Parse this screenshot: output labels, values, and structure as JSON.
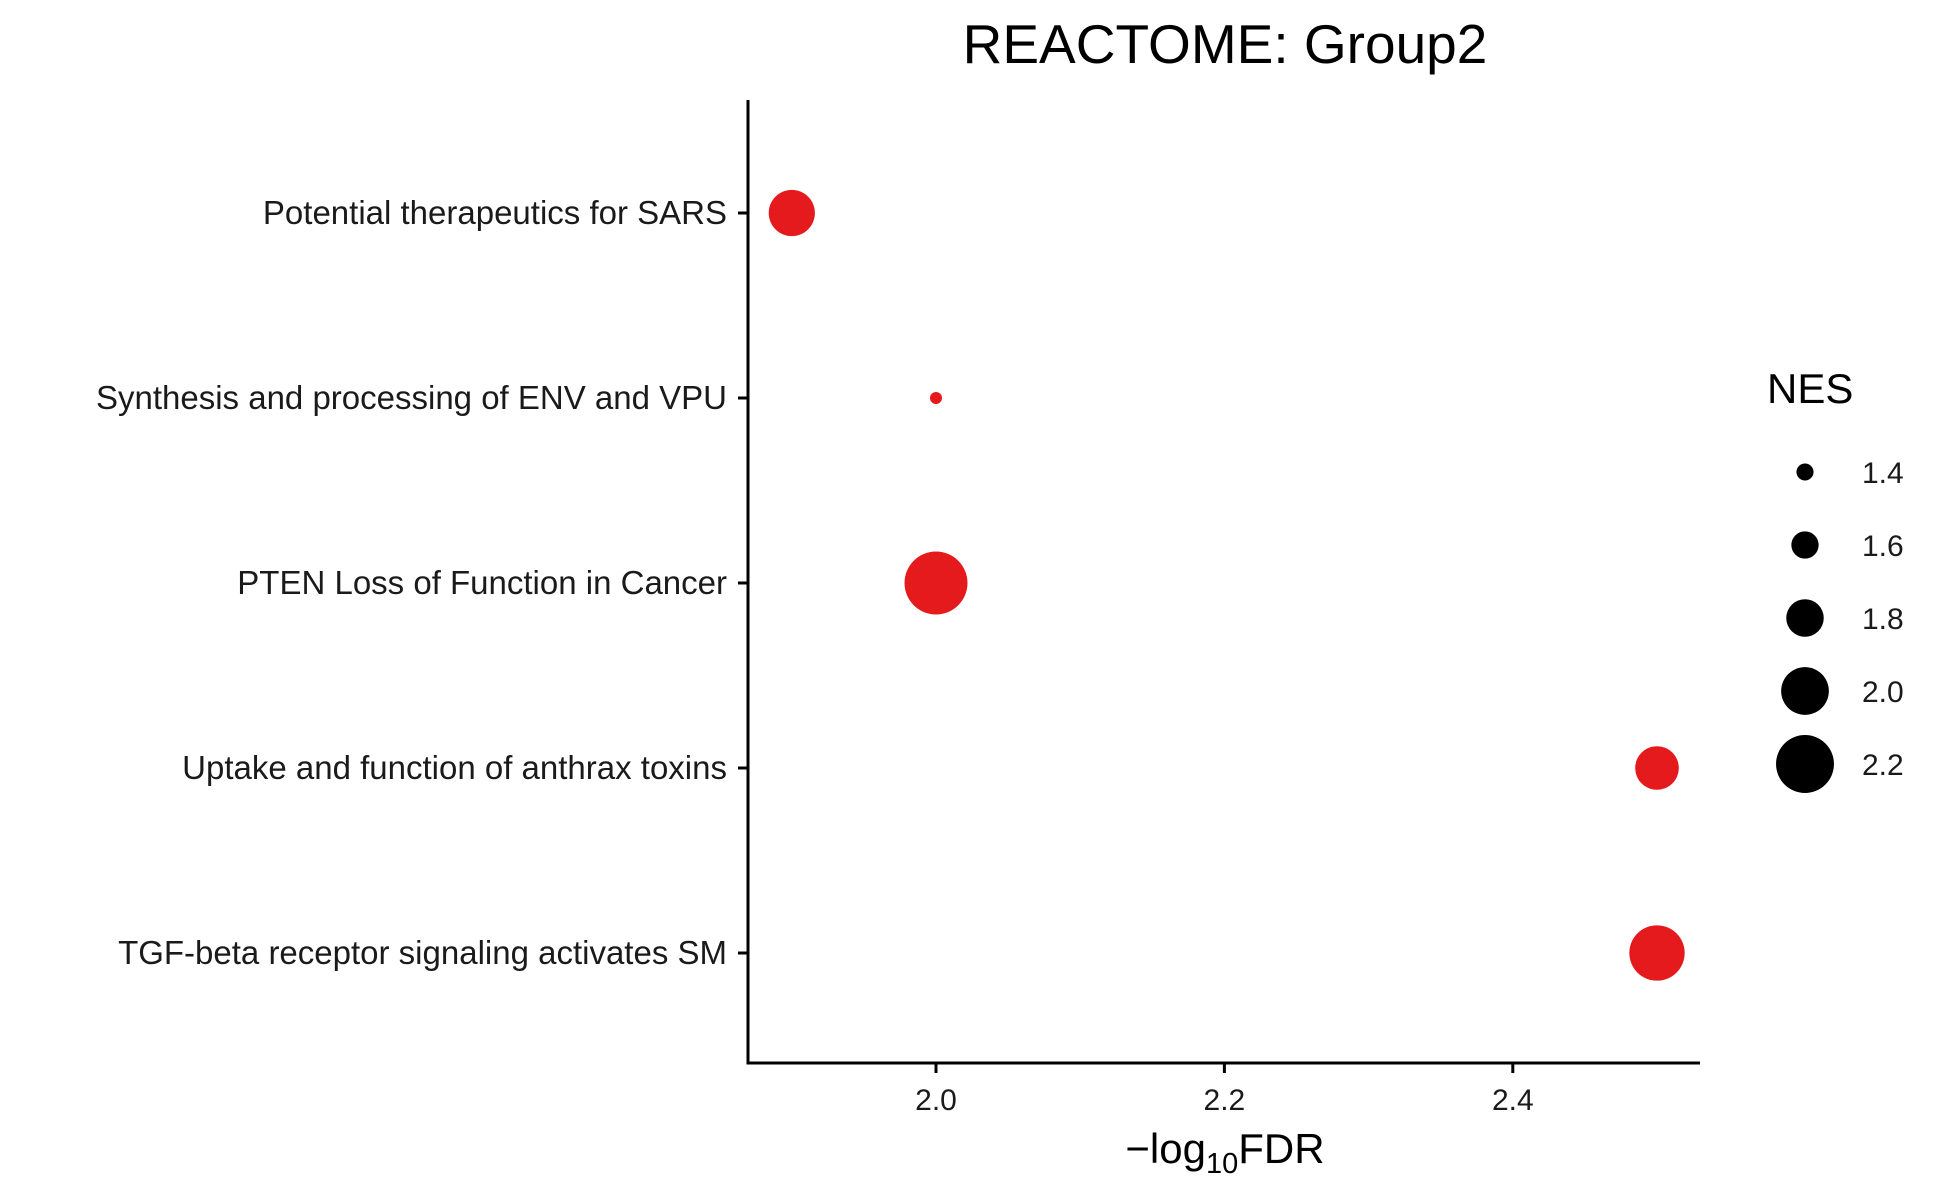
{
  "chart_data": {
    "type": "scatter",
    "title": "REACTOME: Group2",
    "xlabel": {
      "prefix": "−log",
      "subscript": "10",
      "suffix": "FDR"
    },
    "ylabel": "",
    "xlim": [
      1.87,
      2.53
    ],
    "x_ticks": [
      2.0,
      2.2,
      2.4
    ],
    "x_tick_labels": [
      "2.0",
      "2.2",
      "2.4"
    ],
    "grid": false,
    "categories": [
      "Potential therapeutics for SARS",
      "Synthesis and processing of ENV and VPU",
      "PTEN Loss of Function in Cancer",
      "Uptake and function of anthrax toxins",
      "TGF-beta receptor signaling activates SM"
    ],
    "points": [
      {
        "category": "Potential therapeutics for SARS",
        "x": 1.9,
        "size": 1.97
      },
      {
        "category": "Synthesis and processing of ENV and VPU",
        "x": 2.0,
        "size": 1.3
      },
      {
        "category": "PTEN Loss of Function in Cancer",
        "x": 2.0,
        "size": 2.3
      },
      {
        "category": "Uptake and function of anthrax toxins",
        "x": 2.5,
        "size": 1.92
      },
      {
        "category": "TGF-beta receptor signaling activates SM",
        "x": 2.5,
        "size": 2.15
      }
    ],
    "point_color": "#e41a1c",
    "size_legend": {
      "title": "NES",
      "position": "right",
      "values": [
        1.4,
        1.6,
        1.8,
        2.0,
        2.2
      ],
      "labels": [
        "1.4",
        "1.6",
        "1.8",
        "2.0",
        "2.2"
      ],
      "color": "#000000"
    }
  }
}
